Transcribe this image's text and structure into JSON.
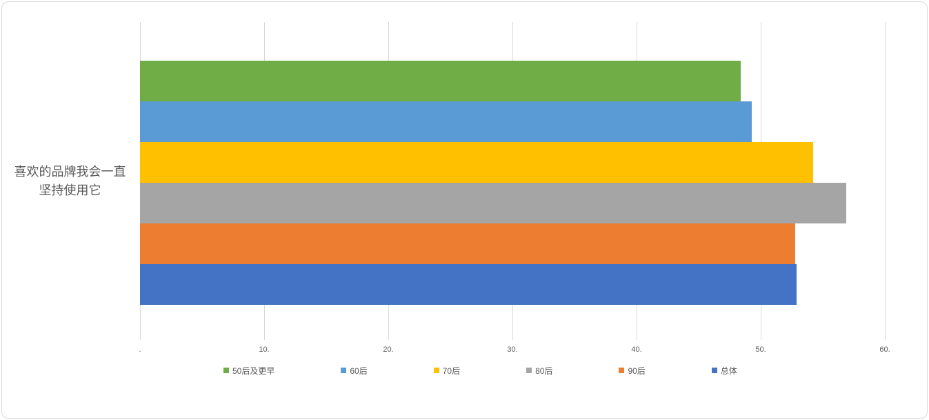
{
  "chart_data": {
    "type": "bar",
    "orientation": "horizontal",
    "title": "",
    "xlabel": "",
    "ylabel": "",
    "categories": [
      "喜欢的品牌我会一直坚持使用它"
    ],
    "category_label_wrapped": "喜欢的品牌我会一直\n坚持使用它",
    "series": [
      {
        "name": "50后及更早",
        "color": "#70AD47",
        "values": [
          48.4
        ]
      },
      {
        "name": "60后",
        "color": "#5B9BD5",
        "values": [
          49.3
        ]
      },
      {
        "name": "70后",
        "color": "#FFC000",
        "values": [
          54.2
        ]
      },
      {
        "name": "80后",
        "color": "#A5A5A5",
        "values": [
          56.9
        ]
      },
      {
        "name": "90后",
        "color": "#ED7D31",
        "values": [
          52.8
        ]
      },
      {
        "name": "总体",
        "color": "#4472C4",
        "values": [
          52.9
        ]
      }
    ],
    "xaxis": {
      "min": 0,
      "max": 60,
      "tick_interval": 10,
      "tick_labels": [
        ".",
        "10.",
        "20.",
        "30.",
        "40.",
        "50.",
        "60."
      ],
      "grid": true
    },
    "legend_position": "bottom",
    "colors": {
      "grid": "#D9D9D9",
      "axis_line": "#D9D9D9",
      "text": "#595959",
      "chart_border": "#D9D9D9",
      "background": "#FFFFFF"
    }
  }
}
